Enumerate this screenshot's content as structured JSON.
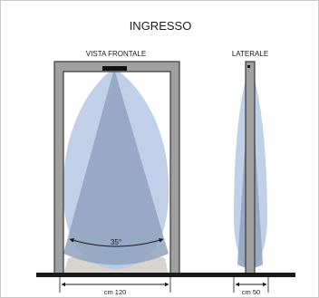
{
  "diagram": {
    "title": "INGRESSO",
    "front_view": {
      "label": "VISTA FRONTALE",
      "angle_label": "35°",
      "width_label": "cm 120"
    },
    "side_view": {
      "label": "LATERALE",
      "width_label": "cm 50"
    },
    "colors": {
      "beam_outer": "#b9cbe6",
      "beam_inner": "#8fa2bd",
      "floor_shadow": "#d7d3cf",
      "frame_fill": "#a0a0a0",
      "frame_stroke": "#3a3a3a",
      "sensor": "#111111",
      "floor": "#1a1a1a"
    }
  }
}
